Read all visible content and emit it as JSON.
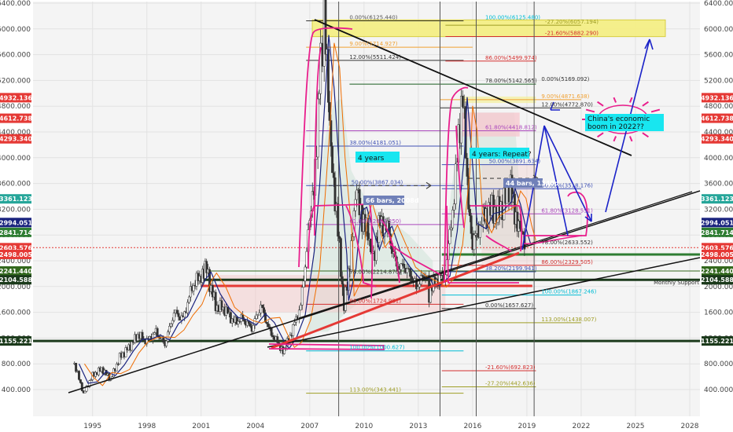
{
  "chart_data": {
    "type": "candlestick",
    "y_axis_ticks": [
      400,
      800,
      1200,
      1600,
      2000,
      2400,
      2800,
      3200,
      3600,
      4000,
      4400,
      4800,
      5200,
      5600,
      6000,
      6400
    ],
    "x_axis_ticks": [
      "1995",
      "1998",
      "2001",
      "2004",
      "2007",
      "2010",
      "2013",
      "2016",
      "2019",
      "2022",
      "2025",
      "2028"
    ],
    "ylim": [
      150,
      6450
    ],
    "xlim": [
      1993.0,
      2029.0
    ],
    "price_series": [
      [
        1994.0,
        800
      ],
      [
        1994.5,
        334
      ],
      [
        1995.0,
        620
      ],
      [
        1995.5,
        720
      ],
      [
        1996.0,
        560
      ],
      [
        1996.5,
        900
      ],
      [
        1997.0,
        1050
      ],
      [
        1997.5,
        1250
      ],
      [
        1998.0,
        1150
      ],
      [
        1998.5,
        1300
      ],
      [
        1999.0,
        1100
      ],
      [
        1999.5,
        1600
      ],
      [
        2000.0,
        1500
      ],
      [
        2000.5,
        2000
      ],
      [
        2001.0,
        2180
      ],
      [
        2001.3,
        2245
      ],
      [
        2001.8,
        1700
      ],
      [
        2002.3,
        1650
      ],
      [
        2002.8,
        1450
      ],
      [
        2003.3,
        1500
      ],
      [
        2003.8,
        1350
      ],
      [
        2004.3,
        1700
      ],
      [
        2004.8,
        1300
      ],
      [
        2005.3,
        1100
      ],
      [
        2005.6,
        1000
      ],
      [
        2006.0,
        1300
      ],
      [
        2006.5,
        1700
      ],
      [
        2007.0,
        3000
      ],
      [
        2007.3,
        3900
      ],
      [
        2007.6,
        5500
      ],
      [
        2007.8,
        6125
      ],
      [
        2008.1,
        4500
      ],
      [
        2008.4,
        3400
      ],
      [
        2008.8,
        2000
      ],
      [
        2008.9,
        1665
      ],
      [
        2009.3,
        2600
      ],
      [
        2009.6,
        3478
      ],
      [
        2009.9,
        3100
      ],
      [
        2010.3,
        2700
      ],
      [
        2010.6,
        2500
      ],
      [
        2010.9,
        3000
      ],
      [
        2011.3,
        2900
      ],
      [
        2011.8,
        2300
      ],
      [
        2012.3,
        2300
      ],
      [
        2012.9,
        2000
      ],
      [
        2013.4,
        2200
      ],
      [
        2013.6,
        1900
      ],
      [
        2014.0,
        2100
      ],
      [
        2014.5,
        2200
      ],
      [
        2014.9,
        3200
      ],
      [
        2015.3,
        4500
      ],
      [
        2015.45,
        5178
      ],
      [
        2015.7,
        3500
      ],
      [
        2016.0,
        2700
      ],
      [
        2016.5,
        3000
      ],
      [
        2016.9,
        3200
      ],
      [
        2017.4,
        3150
      ],
      [
        2017.9,
        3400
      ],
      [
        2018.1,
        3587
      ],
      [
        2018.4,
        3100
      ],
      [
        2018.7,
        2800
      ],
      [
        2018.95,
        2600
      ]
    ],
    "current_price": 2603.576,
    "fib_labels": [
      {
        "text": "0.00%(6125.440)",
        "y": 6125.44,
        "x": 2009.2,
        "color": "#555555"
      },
      {
        "text": "100.00%(6125.480)",
        "y": 6125.48,
        "x": 2016.7,
        "color": "#00bcd4"
      },
      {
        "text": "-27.20%(6057.194)",
        "y": 6057.19,
        "x": 2020.0,
        "color": "#9e9d24"
      },
      {
        "text": "-21.60%(5882.290)",
        "y": 5882.29,
        "x": 2020.0,
        "color": "#d32f2f"
      },
      {
        "text": "9.00%(5714.927)",
        "y": 5714.93,
        "x": 2009.2,
        "color": "#f0a030"
      },
      {
        "text": "12.00%(5511.424)",
        "y": 5511.42,
        "x": 2009.2,
        "color": "#333333"
      },
      {
        "text": "86.00%(5499.974)",
        "y": 5499.97,
        "x": 2016.7,
        "color": "#d32f2f"
      },
      {
        "text": "78.00%(5142.565)",
        "y": 5142.57,
        "x": 2016.7,
        "color": "#333333"
      },
      {
        "text": "0.00%(5169.092)",
        "y": 5169.09,
        "x": 2019.8,
        "color": "#333333"
      },
      {
        "text": "9.00%(4871.638)",
        "y": 4901.64,
        "x": 2019.8,
        "color": "#f0a030"
      },
      {
        "text": "12.00%(4772.870)",
        "y": 4772.87,
        "x": 2019.8,
        "color": "#333333"
      },
      {
        "text": "61.80%(4418.812)",
        "y": 4418.81,
        "x": 2016.7,
        "color": "#ab47bc"
      },
      {
        "text": "38.00%(4181.051)",
        "y": 4181.05,
        "x": 2009.2,
        "color": "#3f51b5"
      },
      {
        "text": "50.00%(3891.634)",
        "y": 3891.63,
        "x": 2016.9,
        "color": "#3f51b5"
      },
      {
        "text": "50.00%(3867.034)",
        "y": 3567.03,
        "x": 2009.3,
        "color": "#3f51b5"
      },
      {
        "text": "50.00%(3518.176)",
        "y": 3518.18,
        "x": 2019.8,
        "color": "#3f51b5"
      },
      {
        "text": "61.80%(3128.551)",
        "y": 3128.55,
        "x": 2019.8,
        "color": "#ab47bc"
      },
      {
        "text": "61.80%(2863.250)",
        "y": 2963.25,
        "x": 2009.2,
        "color": "#ab47bc"
      },
      {
        "text": "78.00%(2633.552)",
        "y": 2633.55,
        "x": 2019.8,
        "color": "#333333"
      },
      {
        "text": "86.00%(2329.505)",
        "y": 2329.51,
        "x": 2019.8,
        "color": "#d32f2f"
      },
      {
        "text": "78.00%(2214.870)",
        "y": 2174.87,
        "x": 2009.2,
        "color": "#333333"
      },
      {
        "text": "38.20%(2199.941)",
        "y": 2229.94,
        "x": 2016.7,
        "color": "#3f51b5"
      },
      {
        "text": "100.00%(1867.246)",
        "y": 1867.25,
        "x": 2019.8,
        "color": "#00bcd4"
      },
      {
        "text": "86.00%(1724.981)",
        "y": 1724.98,
        "x": 2009.2,
        "color": "#d32f2f"
      },
      {
        "text": "0.00%(1657.627)",
        "y": 1657.63,
        "x": 2016.7,
        "color": "#333333"
      },
      {
        "text": "113.00%(1438.007)",
        "y": 1438.01,
        "x": 2019.8,
        "color": "#9e9d24"
      },
      {
        "text": "100.00%(1000.627)",
        "y": 1000.63,
        "x": 2009.2,
        "color": "#00bcd4"
      },
      {
        "text": "-21.60%(692.823)",
        "y": 692.82,
        "x": 2016.7,
        "color": "#d32f2f"
      },
      {
        "text": "-27.20%(442.636)",
        "y": 442.64,
        "x": 2016.7,
        "color": "#9e9d24"
      },
      {
        "text": "113.00%(343.441)",
        "y": 343.44,
        "x": 2009.2,
        "color": "#9e9d24"
      }
    ],
    "price_badges": [
      {
        "text": "4932.136",
        "y": 4932.136,
        "color": "#e53935",
        "side": "both"
      },
      {
        "text": "4612.738",
        "y": 4612.738,
        "color": "#e53935",
        "side": "both"
      },
      {
        "text": "4293.340",
        "y": 4293.34,
        "color": "#e53935",
        "side": "both"
      },
      {
        "text": "3361.123",
        "y": 3361.123,
        "color": "#26a69a",
        "side": "both"
      },
      {
        "text": "2994.051",
        "y": 2994.051,
        "color": "#1a237e",
        "side": "both"
      },
      {
        "text": "2841.714",
        "y": 2841.714,
        "color": "#2e7d32",
        "side": "both"
      },
      {
        "text": "2603.576",
        "y": 2603.576,
        "color": "#e53935",
        "side": "both"
      },
      {
        "text": "2498.005",
        "y": 2498.005,
        "color": "#e53935",
        "side": "both"
      },
      {
        "text": "2241.440",
        "y": 2241.44,
        "color": "#33691e",
        "side": "both"
      },
      {
        "text": "2104.588",
        "y": 2104.588,
        "color": "#1b3a1b",
        "side": "both"
      },
      {
        "text": "1155.221",
        "y": 1155.221,
        "color": "#1b3a1b",
        "side": "both"
      }
    ],
    "annotations": {
      "four_years": "4 years",
      "four_years_repeat": "4 years: Repeat?",
      "china_boom": "China's economic boom in 2022??",
      "bars_66": "66 bars, 2008d",
      "bars_44": "44 bars, 1340d",
      "monthly_support": "Monthly Support"
    }
  }
}
